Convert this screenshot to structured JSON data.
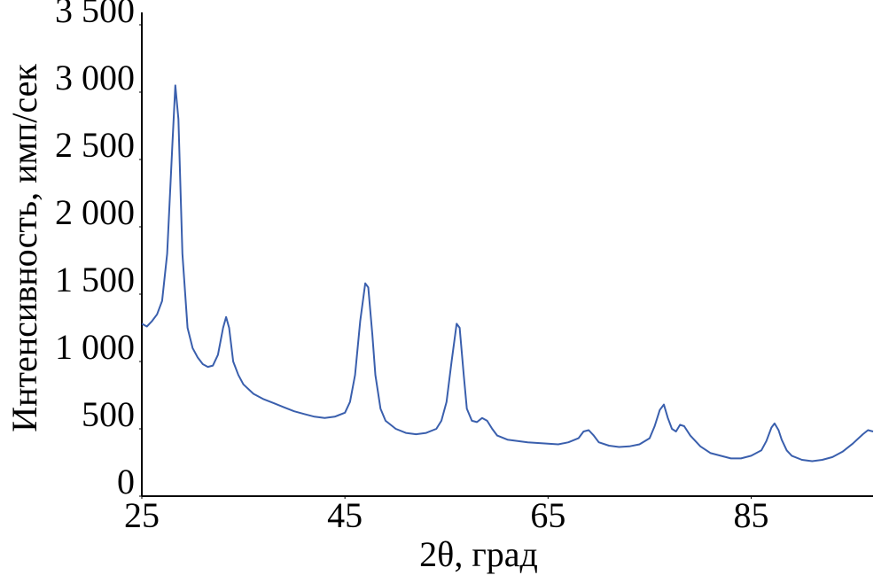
{
  "chart_data": {
    "type": "line",
    "x_label": "2θ, град",
    "y_label": "Интенсивность, имп/сек",
    "xlim": [
      25,
      97
    ],
    "xticks": [
      25,
      45,
      65,
      85
    ],
    "ylim": [
      0,
      3500
    ],
    "yticks": [
      0,
      500,
      {
        "value": 1000,
        "label": "1 000"
      },
      {
        "value": 1500,
        "label": "1 500"
      },
      {
        "value": 2000,
        "label": "2 000"
      },
      {
        "value": 2500,
        "label": "2 500"
      },
      {
        "value": 3000,
        "label": "3 000"
      },
      {
        "value": 3500,
        "label": "3 500"
      }
    ],
    "grid": false,
    "series": [
      {
        "color": "#3a5fad",
        "x": [
          25,
          25.5,
          26,
          26.5,
          27,
          27.5,
          28,
          28.3,
          28.6,
          29,
          29.5,
          30,
          30.5,
          31,
          31.5,
          32,
          32.5,
          33,
          33.3,
          33.6,
          34,
          34.5,
          35,
          36,
          37,
          38,
          39,
          40,
          41,
          42,
          43,
          44,
          45,
          45.5,
          46,
          46.5,
          47,
          47.3,
          47.7,
          48,
          48.5,
          49,
          50,
          51,
          52,
          53,
          54,
          54.5,
          55,
          55.5,
          56,
          56.3,
          56.7,
          57,
          57.5,
          58,
          58.5,
          59,
          59.5,
          60,
          61,
          62,
          63,
          64,
          65,
          66,
          67,
          68,
          68.5,
          69,
          69.5,
          70,
          71,
          72,
          73,
          74,
          75,
          75.5,
          76,
          76.4,
          76.8,
          77.2,
          77.6,
          78,
          78.4,
          79,
          80,
          81,
          82,
          83,
          84,
          85,
          86,
          86.5,
          87,
          87.3,
          87.7,
          88,
          88.5,
          89,
          90,
          91,
          92,
          93,
          94,
          95,
          96,
          96.5,
          97
        ],
        "values": [
          1280,
          1260,
          1300,
          1350,
          1450,
          1800,
          2600,
          3050,
          2800,
          1800,
          1250,
          1100,
          1030,
          980,
          960,
          970,
          1050,
          1250,
          1330,
          1250,
          1000,
          900,
          830,
          760,
          720,
          690,
          660,
          630,
          610,
          590,
          580,
          590,
          620,
          700,
          900,
          1300,
          1580,
          1550,
          1200,
          900,
          650,
          560,
          500,
          470,
          460,
          470,
          500,
          560,
          700,
          1000,
          1280,
          1250,
          900,
          650,
          560,
          550,
          580,
          560,
          500,
          450,
          420,
          410,
          400,
          395,
          390,
          385,
          400,
          430,
          480,
          490,
          450,
          400,
          375,
          365,
          370,
          385,
          430,
          520,
          640,
          680,
          580,
          500,
          480,
          530,
          520,
          450,
          370,
          320,
          300,
          280,
          280,
          300,
          340,
          410,
          510,
          540,
          490,
          420,
          340,
          300,
          270,
          260,
          270,
          290,
          330,
          390,
          460,
          490,
          480
        ]
      }
    ]
  }
}
